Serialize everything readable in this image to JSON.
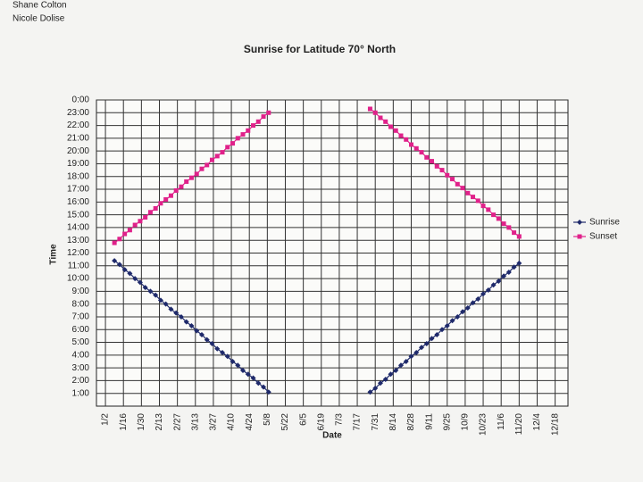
{
  "authors": [
    "Shane Colton",
    "Nicole Dolise"
  ],
  "chart_data": {
    "type": "line",
    "title": "Sunrise for Latitude 70° North",
    "x_label": "Date",
    "y_label": "Time",
    "x": [
      9,
      13,
      17,
      21,
      25,
      29,
      33,
      37,
      41,
      45,
      49,
      53,
      57,
      61,
      65,
      69,
      73,
      77,
      81,
      85,
      89,
      93,
      97,
      101,
      105,
      109,
      113,
      117,
      121,
      125,
      129,
      168,
      208,
      212,
      216,
      220,
      224,
      228,
      232,
      236,
      240,
      244,
      248,
      252,
      256,
      260,
      264,
      268,
      272,
      276,
      280,
      284,
      288,
      292,
      296,
      300,
      304,
      308,
      312,
      316,
      320,
      324
    ],
    "series": [
      {
        "name": "Sunrise",
        "color": "#1f2a6b",
        "marker": "diamond",
        "values": [
          11.4,
          11.1,
          10.7,
          10.4,
          10.0,
          9.7,
          9.3,
          9.0,
          8.7,
          8.3,
          8.0,
          7.6,
          7.3,
          7.0,
          6.6,
          6.3,
          5.9,
          5.6,
          5.2,
          4.9,
          4.5,
          4.2,
          3.9,
          3.5,
          3.2,
          2.8,
          2.5,
          2.2,
          1.8,
          1.5,
          1.1,
          null,
          1.1,
          1.4,
          1.8,
          2.1,
          2.5,
          2.8,
          3.2,
          3.5,
          3.9,
          4.2,
          4.6,
          4.9,
          5.3,
          5.6,
          6.0,
          6.3,
          6.7,
          7.0,
          7.4,
          7.7,
          8.1,
          8.4,
          8.8,
          9.1,
          9.5,
          9.8,
          10.2,
          10.5,
          10.9,
          11.2
        ]
      },
      {
        "name": "Sunset",
        "color": "#e0218a",
        "marker": "square",
        "values": [
          12.8,
          13.1,
          13.5,
          13.8,
          14.2,
          14.5,
          14.8,
          15.2,
          15.5,
          15.9,
          16.2,
          16.5,
          16.9,
          17.2,
          17.6,
          17.9,
          18.2,
          18.6,
          18.9,
          19.3,
          19.6,
          19.9,
          20.3,
          20.6,
          21.0,
          21.3,
          21.6,
          22.0,
          22.3,
          22.7,
          23.0,
          null,
          23.3,
          23.0,
          22.6,
          22.3,
          21.9,
          21.6,
          21.2,
          20.9,
          20.5,
          20.2,
          19.9,
          19.5,
          19.2,
          18.8,
          18.5,
          18.1,
          17.8,
          17.4,
          17.1,
          16.7,
          16.4,
          16.1,
          15.7,
          15.4,
          15.0,
          14.7,
          14.3,
          14.0,
          13.6,
          13.3
        ]
      }
    ],
    "xlim": [
      -5,
      362
    ],
    "xticks": [
      {
        "value": 2,
        "label": "1/2"
      },
      {
        "value": 16,
        "label": "1/16"
      },
      {
        "value": 30,
        "label": "1/30"
      },
      {
        "value": 44,
        "label": "2/13"
      },
      {
        "value": 58,
        "label": "2/27"
      },
      {
        "value": 72,
        "label": "3/13"
      },
      {
        "value": 86,
        "label": "3/27"
      },
      {
        "value": 100,
        "label": "4/10"
      },
      {
        "value": 114,
        "label": "4/24"
      },
      {
        "value": 128,
        "label": "5/8"
      },
      {
        "value": 142,
        "label": "5/22"
      },
      {
        "value": 156,
        "label": "6/5"
      },
      {
        "value": 170,
        "label": "6/19"
      },
      {
        "value": 184,
        "label": "7/3"
      },
      {
        "value": 198,
        "label": "7/17"
      },
      {
        "value": 212,
        "label": "7/31"
      },
      {
        "value": 226,
        "label": "8/14"
      },
      {
        "value": 240,
        "label": "8/28"
      },
      {
        "value": 254,
        "label": "9/11"
      },
      {
        "value": 268,
        "label": "9/25"
      },
      {
        "value": 282,
        "label": "10/9"
      },
      {
        "value": 296,
        "label": "10/23"
      },
      {
        "value": 310,
        "label": "11/6"
      },
      {
        "value": 324,
        "label": "11/20"
      },
      {
        "value": 338,
        "label": "12/4"
      },
      {
        "value": 352,
        "label": "12/18"
      }
    ],
    "ylim": [
      0,
      24
    ],
    "yticks": [
      {
        "value": 1,
        "label": "1:00"
      },
      {
        "value": 2,
        "label": "2:00"
      },
      {
        "value": 3,
        "label": "3:00"
      },
      {
        "value": 4,
        "label": "4:00"
      },
      {
        "value": 5,
        "label": "5:00"
      },
      {
        "value": 6,
        "label": "6:00"
      },
      {
        "value": 7,
        "label": "7:00"
      },
      {
        "value": 8,
        "label": "8:00"
      },
      {
        "value": 9,
        "label": "9:00"
      },
      {
        "value": 10,
        "label": "10:00"
      },
      {
        "value": 11,
        "label": "11:00"
      },
      {
        "value": 12,
        "label": "12:00"
      },
      {
        "value": 13,
        "label": "13:00"
      },
      {
        "value": 14,
        "label": "14:00"
      },
      {
        "value": 15,
        "label": "15:00"
      },
      {
        "value": 16,
        "label": "16:00"
      },
      {
        "value": 17,
        "label": "17:00"
      },
      {
        "value": 18,
        "label": "18:00"
      },
      {
        "value": 19,
        "label": "19:00"
      },
      {
        "value": 20,
        "label": "20:00"
      },
      {
        "value": 21,
        "label": "21:00"
      },
      {
        "value": 22,
        "label": "22:00"
      },
      {
        "value": 23,
        "label": "23:00"
      },
      {
        "value": 24,
        "label": "0:00"
      }
    ],
    "grid": true,
    "legend": "right"
  }
}
